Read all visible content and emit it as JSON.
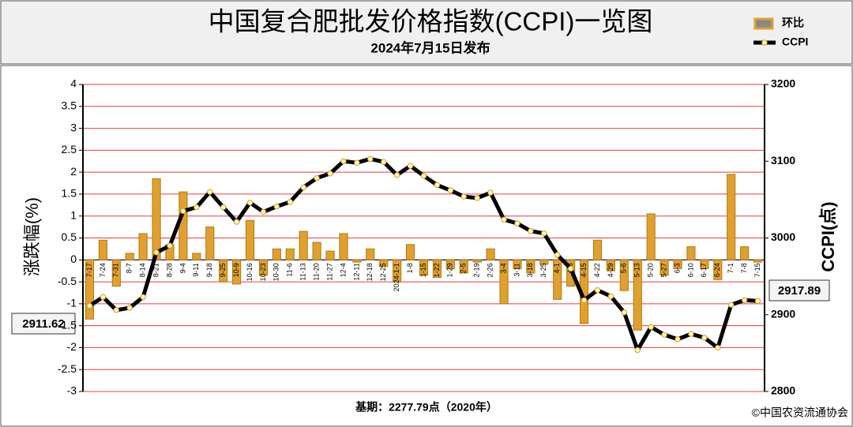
{
  "chart_data": {
    "type": "bar-line",
    "title": "中国复合肥批发价格指数(CCPI)一览图",
    "subtitle": "2024年7月15日发布",
    "y_label": "涨跌幅(%)",
    "y2_label": "CCPI(点)",
    "footnote": "基期：2277.79点（2020年）",
    "source": "©中国农资流通协会",
    "legend": "upper right",
    "grid": true,
    "categories": [
      "7-17",
      "7-24",
      "7-31",
      "8-7",
      "8-14",
      "8-21",
      "8-28",
      "9-4",
      "9-11",
      "9-18",
      "9-25",
      "10-9",
      "10-16",
      "10-23",
      "10-30",
      "11-6",
      "11-13",
      "11-20",
      "11-27",
      "12-4",
      "12-11",
      "12-18",
      "12-25",
      "2024-1-1",
      "1-8",
      "1-15",
      "1-22",
      "1-29",
      "2-5",
      "2-19",
      "2-26",
      "3-4",
      "3-11",
      "3-18",
      "3-25",
      "4-1",
      "4-8",
      "4-15",
      "4-22",
      "4-29",
      "5-6",
      "5-13",
      "5-20",
      "5-27",
      "6-3",
      "6-10",
      "6-17",
      "6-24",
      "7-1",
      "7-8",
      "7-15"
    ],
    "series": [
      {
        "name": "环比",
        "type": "bar",
        "color": "#e0a030",
        "values": [
          -1.35,
          0.45,
          -0.6,
          0.15,
          0.6,
          1.85,
          0.35,
          1.55,
          0.15,
          0.75,
          -0.5,
          -0.55,
          0.9,
          -0.35,
          0.25,
          0.25,
          0.65,
          0.4,
          0.2,
          0.6,
          -0.05,
          0.25,
          -0.15,
          -0.5,
          0.35,
          -0.35,
          -0.4,
          -0.2,
          -0.3,
          -0.05,
          0.25,
          -1.0,
          -0.2,
          -0.3,
          -0.1,
          -0.9,
          -0.6,
          -1.45,
          0.45,
          -0.25,
          -0.7,
          -1.6,
          1.05,
          -0.35,
          -0.2,
          0.3,
          -0.2,
          -0.45,
          1.95,
          0.3,
          -0.05
        ]
      },
      {
        "name": "CCPI",
        "type": "line",
        "axis": "y2",
        "color": "#000000",
        "values": [
          2911.62,
          2923,
          2906,
          2909,
          2923,
          2981,
          2990,
          3035,
          3040,
          3060,
          3040,
          3021,
          3046,
          3034,
          3041,
          3047,
          3066,
          3078,
          3084,
          3100,
          3098,
          3103,
          3099,
          3082,
          3094,
          3081,
          3069,
          3062,
          3054,
          3052,
          3059,
          3024,
          3019,
          3009,
          3006,
          2978,
          2960,
          2919,
          2932,
          2924,
          2903,
          2854,
          2884,
          2874,
          2868,
          2875,
          2870,
          2857,
          2913,
          2919,
          2917.89
        ]
      }
    ],
    "ylim": [
      -3,
      4
    ],
    "yticks": [
      -3,
      -2.5,
      -2,
      -1.5,
      -1,
      -0.5,
      0,
      0.5,
      1,
      1.5,
      2,
      2.5,
      3,
      3.5,
      4
    ],
    "y2lim": [
      2800,
      3200
    ],
    "y2ticks": [
      2800,
      2900,
      3000,
      3100,
      3200
    ]
  }
}
